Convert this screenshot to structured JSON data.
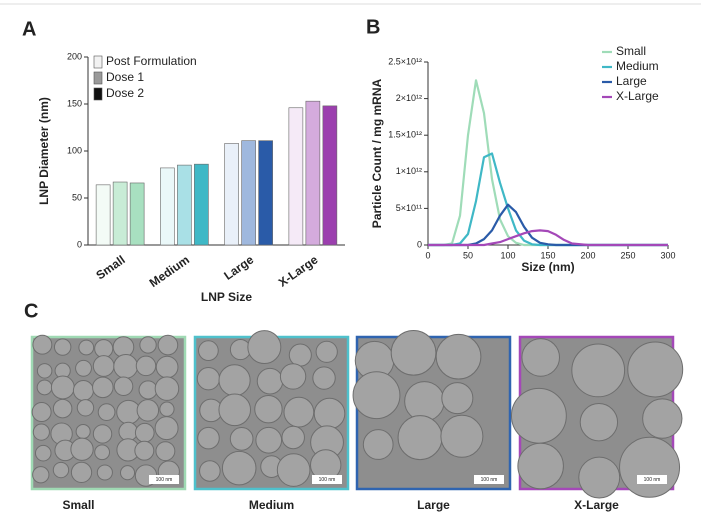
{
  "panels": [
    "A",
    "B",
    "C"
  ],
  "chart_data": [
    {
      "type": "bar",
      "x_label": "LNP Size",
      "y_label": "LNP Diameter (nm)",
      "categories": [
        "Small",
        "Medium",
        "Large",
        "X-Large"
      ],
      "series": [
        {
          "name": "Post Formulation",
          "color": "#f2f2f2",
          "colors": [
            "#f3fbf6",
            "#eaf8f9",
            "#e9f0f9",
            "#f5eaf7"
          ],
          "values": [
            64,
            82,
            108,
            146
          ]
        },
        {
          "name": "Dose 1",
          "color": "#9a9a9a",
          "colors": [
            "#c8ecd6",
            "#a9e0e6",
            "#9fb8de",
            "#d4abdd"
          ],
          "values": [
            67,
            85,
            111,
            153
          ]
        },
        {
          "name": "Dose 2",
          "color": "#111111",
          "colors": [
            "#a8e0c0",
            "#3fb8c6",
            "#2a5ba8",
            "#9b3fae"
          ],
          "values": [
            66,
            86,
            111,
            148
          ]
        }
      ],
      "ylim": [
        0,
        200
      ],
      "yticks": [
        0,
        50,
        100,
        150,
        200
      ]
    },
    {
      "type": "line",
      "x_label": "Size (nm)",
      "y_label": "Particle Count / mg mRNA",
      "x": [
        0,
        20,
        30,
        40,
        50,
        60,
        70,
        80,
        90,
        100,
        110,
        120,
        130,
        140,
        150,
        160,
        170,
        180,
        200,
        250,
        300
      ],
      "series": [
        {
          "name": "Small",
          "color": "#9fdcb8",
          "values": [
            0,
            0,
            20000000000.0,
            400000000000.0,
            1500000000000.0,
            2250000000000.0,
            1800000000000.0,
            900000000000.0,
            350000000000.0,
            120000000000.0,
            30000000000.0,
            0,
            0,
            0,
            0,
            0,
            0,
            0,
            0,
            0,
            0
          ]
        },
        {
          "name": "Medium",
          "color": "#3fb8c6",
          "values": [
            0,
            0,
            0,
            20000000000.0,
            150000000000.0,
            600000000000.0,
            1200000000000.0,
            1250000000000.0,
            850000000000.0,
            500000000000.0,
            200000000000.0,
            60000000000.0,
            10000000000.0,
            0,
            0,
            0,
            0,
            0,
            0,
            0,
            0
          ]
        },
        {
          "name": "Large",
          "color": "#2a5ba8",
          "values": [
            0,
            0,
            0,
            0,
            0,
            20000000000.0,
            80000000000.0,
            200000000000.0,
            400000000000.0,
            550000000000.0,
            450000000000.0,
            250000000000.0,
            100000000000.0,
            30000000000.0,
            10000000000.0,
            0,
            0,
            0,
            0,
            0,
            0
          ]
        },
        {
          "name": "X-Large",
          "color": "#a448b8",
          "values": [
            0,
            0,
            0,
            0,
            0,
            0,
            0,
            20000000000.0,
            40000000000.0,
            80000000000.0,
            120000000000.0,
            160000000000.0,
            190000000000.0,
            200000000000.0,
            190000000000.0,
            140000000000.0,
            70000000000.0,
            20000000000.0,
            0,
            0,
            0
          ]
        }
      ],
      "xlim": [
        0,
        300
      ],
      "xticks": [
        0,
        50,
        100,
        150,
        200,
        250,
        300
      ],
      "ylim": [
        0,
        2500000000000.0
      ],
      "yticks": [
        0,
        {
          "value": 500000000000.0,
          "label": "5×10¹¹"
        },
        {
          "value": 1000000000000.0,
          "label": "1×10¹²"
        },
        {
          "value": 1500000000000.0,
          "label": "1.5×10¹²"
        },
        {
          "value": 2000000000000.0,
          "label": "2×10¹²"
        },
        {
          "value": 2500000000000.0,
          "label": "2.5×10¹²"
        }
      ]
    }
  ],
  "images": {
    "labels": [
      "Small",
      "Medium",
      "Large",
      "X-Large"
    ],
    "scale_bar": "100 nm"
  }
}
